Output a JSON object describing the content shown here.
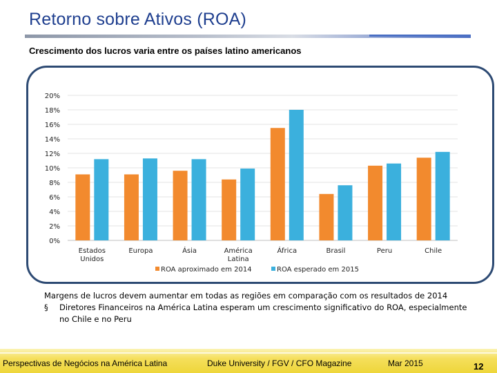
{
  "slide": {
    "title": "Retorno sobre Ativos (ROA)",
    "subtitle": "Crescimento dos lucros varia entre os países latino americanos"
  },
  "chart_data": {
    "type": "bar",
    "categories": [
      "Estados Unidos",
      "Europa",
      "Ásia",
      "América Latina",
      "África",
      "Brasil",
      "Peru",
      "Chile"
    ],
    "series": [
      {
        "name": "ROA aproximado em 2014",
        "color": "#f28a2e",
        "values": [
          9.1,
          9.1,
          9.6,
          8.4,
          15.5,
          6.4,
          10.3,
          11.4
        ]
      },
      {
        "name": "ROA esperado em 2015",
        "color": "#3bb0dd",
        "values": [
          11.2,
          11.3,
          11.2,
          9.9,
          18.0,
          7.6,
          10.6,
          12.2
        ]
      }
    ],
    "ylim": [
      0,
      20
    ],
    "yticks": [
      "0%",
      "2%",
      "4%",
      "6%",
      "8%",
      "10%",
      "12%",
      "14%",
      "16%",
      "18%",
      "20%"
    ],
    "grid": true,
    "legend_position": "bottom",
    "title": "",
    "xlabel": "",
    "ylabel": ""
  },
  "notes": {
    "headline": "Margens de lucros devem aumentar em todas as regiões em comparação com os resultados de 2014",
    "bullet_mark": "§",
    "bullets": [
      "Diretores Financeiros na América Latina esperam um crescimento significativo do ROA, especialmente no Chile e no Peru"
    ]
  },
  "footer": {
    "left": "Perspectivas de Negócios na América Latina",
    "center": "Duke University / FGV / CFO Magazine",
    "date": "Mar 2015",
    "page": "12"
  }
}
